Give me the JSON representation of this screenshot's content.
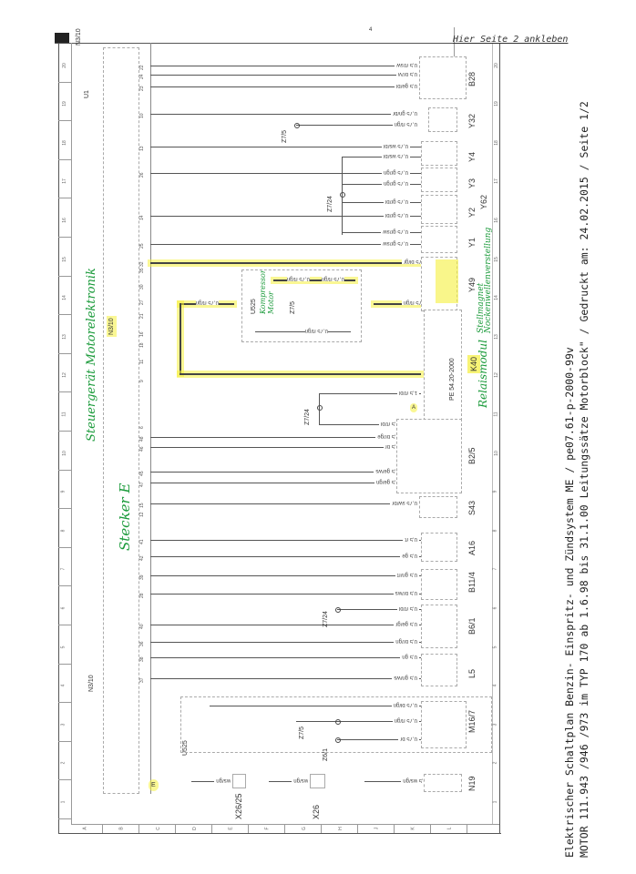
{
  "header": {
    "paste_note": "Hier Seite 2 ankleben",
    "corner_label": "N3/10",
    "top_marker": "4"
  },
  "footer_title": {
    "line1": "Elektrischer Schaltplan Benzin- Einspritz- und Zündsystem ME   /   pe07.61-p-2000-99v",
    "line2": "MOTOR 111.943 /946 /973 im TYP 170 ab 1.6.98 bis 31.1.00 Leitungssätze Motorblock\"  / Gedruckt am: 24.02.2015  / Seite 1/2"
  },
  "grid": {
    "rows": [
      "1",
      "2",
      "3",
      "4",
      "5",
      "6",
      "7",
      "8",
      "9",
      "10",
      "11",
      "12",
      "13",
      "14",
      "15",
      "16",
      "17",
      "18",
      "19",
      "20"
    ],
    "columns": [
      "A",
      "B",
      "C",
      "D",
      "E",
      "F",
      "G",
      "H",
      "J",
      "K",
      "L"
    ]
  },
  "control_unit": {
    "label": "N3/10",
    "label_top": "N3/10",
    "sub_label": "U1",
    "connector_label": "E",
    "u525_label": "U525"
  },
  "handwritten": {
    "ecu": "Steuergerät Motorelektronik",
    "connector": "Stecker E",
    "compressor": "Kompressor Motor",
    "relay": "Relaismodul",
    "actuator": "Stellmagnet Nockenwellenverstellung"
  },
  "components": [
    {
      "id": "B28"
    },
    {
      "id": "Y32"
    },
    {
      "id": "Y4"
    },
    {
      "id": "Y3"
    },
    {
      "id": "Y2"
    },
    {
      "id": "Y1"
    },
    {
      "id": "Y62"
    },
    {
      "id": "Y49"
    },
    {
      "id": "K40"
    },
    {
      "id": "B2/5"
    },
    {
      "id": "S43"
    },
    {
      "id": "A16"
    },
    {
      "id": "B11/4"
    },
    {
      "id": "B6/1"
    },
    {
      "id": "L5"
    },
    {
      "id": "M16/7"
    },
    {
      "id": "N19"
    },
    {
      "id": "X26"
    },
    {
      "id": "X26/25"
    }
  ],
  "k40_part": "PE 54.20-2000",
  "k40_marker": "A",
  "splices": [
    {
      "label": "Z7/5"
    },
    {
      "label": "Z7/24"
    },
    {
      "label": "Z7/5"
    },
    {
      "label": "Z7/24"
    },
    {
      "label": "Z7/24"
    },
    {
      "label": "Z7/5"
    },
    {
      "label": "Z6/1"
    }
  ],
  "u525_inner_label": "U525",
  "u525_splice": "Z7/5",
  "wires": [
    {
      "label": "0,5 rt/sw",
      "pin": "22"
    },
    {
      "label": "0,5 br/vi",
      "pin": "24"
    },
    {
      "label": "0,5 ge/bl",
      "pin": "23"
    },
    {
      "label": "0,75 gn/br",
      "pin": "10"
    },
    {
      "label": "0,75 rt/gn",
      "pin": ""
    },
    {
      "label": "0,75 ws/bl",
      "pin": "13"
    },
    {
      "label": "0,75 ws/bl",
      "pin": ""
    },
    {
      "label": "0,75 gr/gn",
      "pin": "26"
    },
    {
      "label": "0,75 gr/gn",
      "pin": ""
    },
    {
      "label": "0,75 gr/bl",
      "pin": ""
    },
    {
      "label": "0,75 gr/bl",
      "pin": "14"
    },
    {
      "label": "0,75 gr/sw",
      "pin": ""
    },
    {
      "label": "0,75 gr/sw",
      "pin": "25"
    },
    {
      "label": "0,75 bl/gr",
      "pin": "32"
    },
    {
      "label": "0,75 rt/gn",
      "pin": ""
    },
    {
      "label": "1,5 rt/bl",
      "pin": ""
    },
    {
      "label": "0,5 rt/bl",
      "pin": "6"
    },
    {
      "label": "0,5 br/ge",
      "pin": "48"
    },
    {
      "label": "0,5 br",
      "pin": "46"
    },
    {
      "label": "0,5 ge/ws",
      "pin": "45"
    },
    {
      "label": "0,5 ge/gn",
      "pin": "47"
    },
    {
      "label": "0,75 sw/br",
      "pin": "15"
    },
    {
      "label": "0,5 rt",
      "pin": "41"
    },
    {
      "label": "0,5 ge",
      "pin": "42"
    },
    {
      "label": "0,5 gn/rt",
      "pin": "39"
    },
    {
      "label": "0,5 br/ws",
      "pin": "28"
    },
    {
      "label": "0,5 rt/bl",
      "pin": ""
    },
    {
      "label": "0,5 ge/gr",
      "pin": "40"
    },
    {
      "label": "0,5 br/gn",
      "pin": "36"
    },
    {
      "label": "0,5 gn",
      "pin": "38"
    },
    {
      "label": "0,5 gn/ws",
      "pin": "37"
    },
    {
      "label": "0,75 bl/gn",
      "pin": ""
    },
    {
      "label": "0,75 rt/gn",
      "pin": ""
    },
    {
      "label": "0,75 br",
      "pin": ""
    },
    {
      "label": "0,5 ws/gn",
      "pin": ""
    },
    {
      "label": "0,5 ws/gn",
      "pin": ""
    },
    {
      "label": "0,5 ws/gn",
      "pin": ""
    }
  ],
  "extra_pins": [
    "35",
    "30",
    "27",
    "21",
    "16",
    "18",
    "11",
    "9",
    "12"
  ],
  "u525_wires": [
    {
      "label": "0,75 rt/gn"
    },
    {
      "label": "0,75 rt/gn"
    },
    {
      "label": "0,75 rt/gn"
    }
  ],
  "loop_wire": {
    "label": "0,75 rt/gn"
  },
  "colors": {
    "highlight": "#f5f03c",
    "annotation": "#1a9a3a",
    "line": "#555555"
  }
}
